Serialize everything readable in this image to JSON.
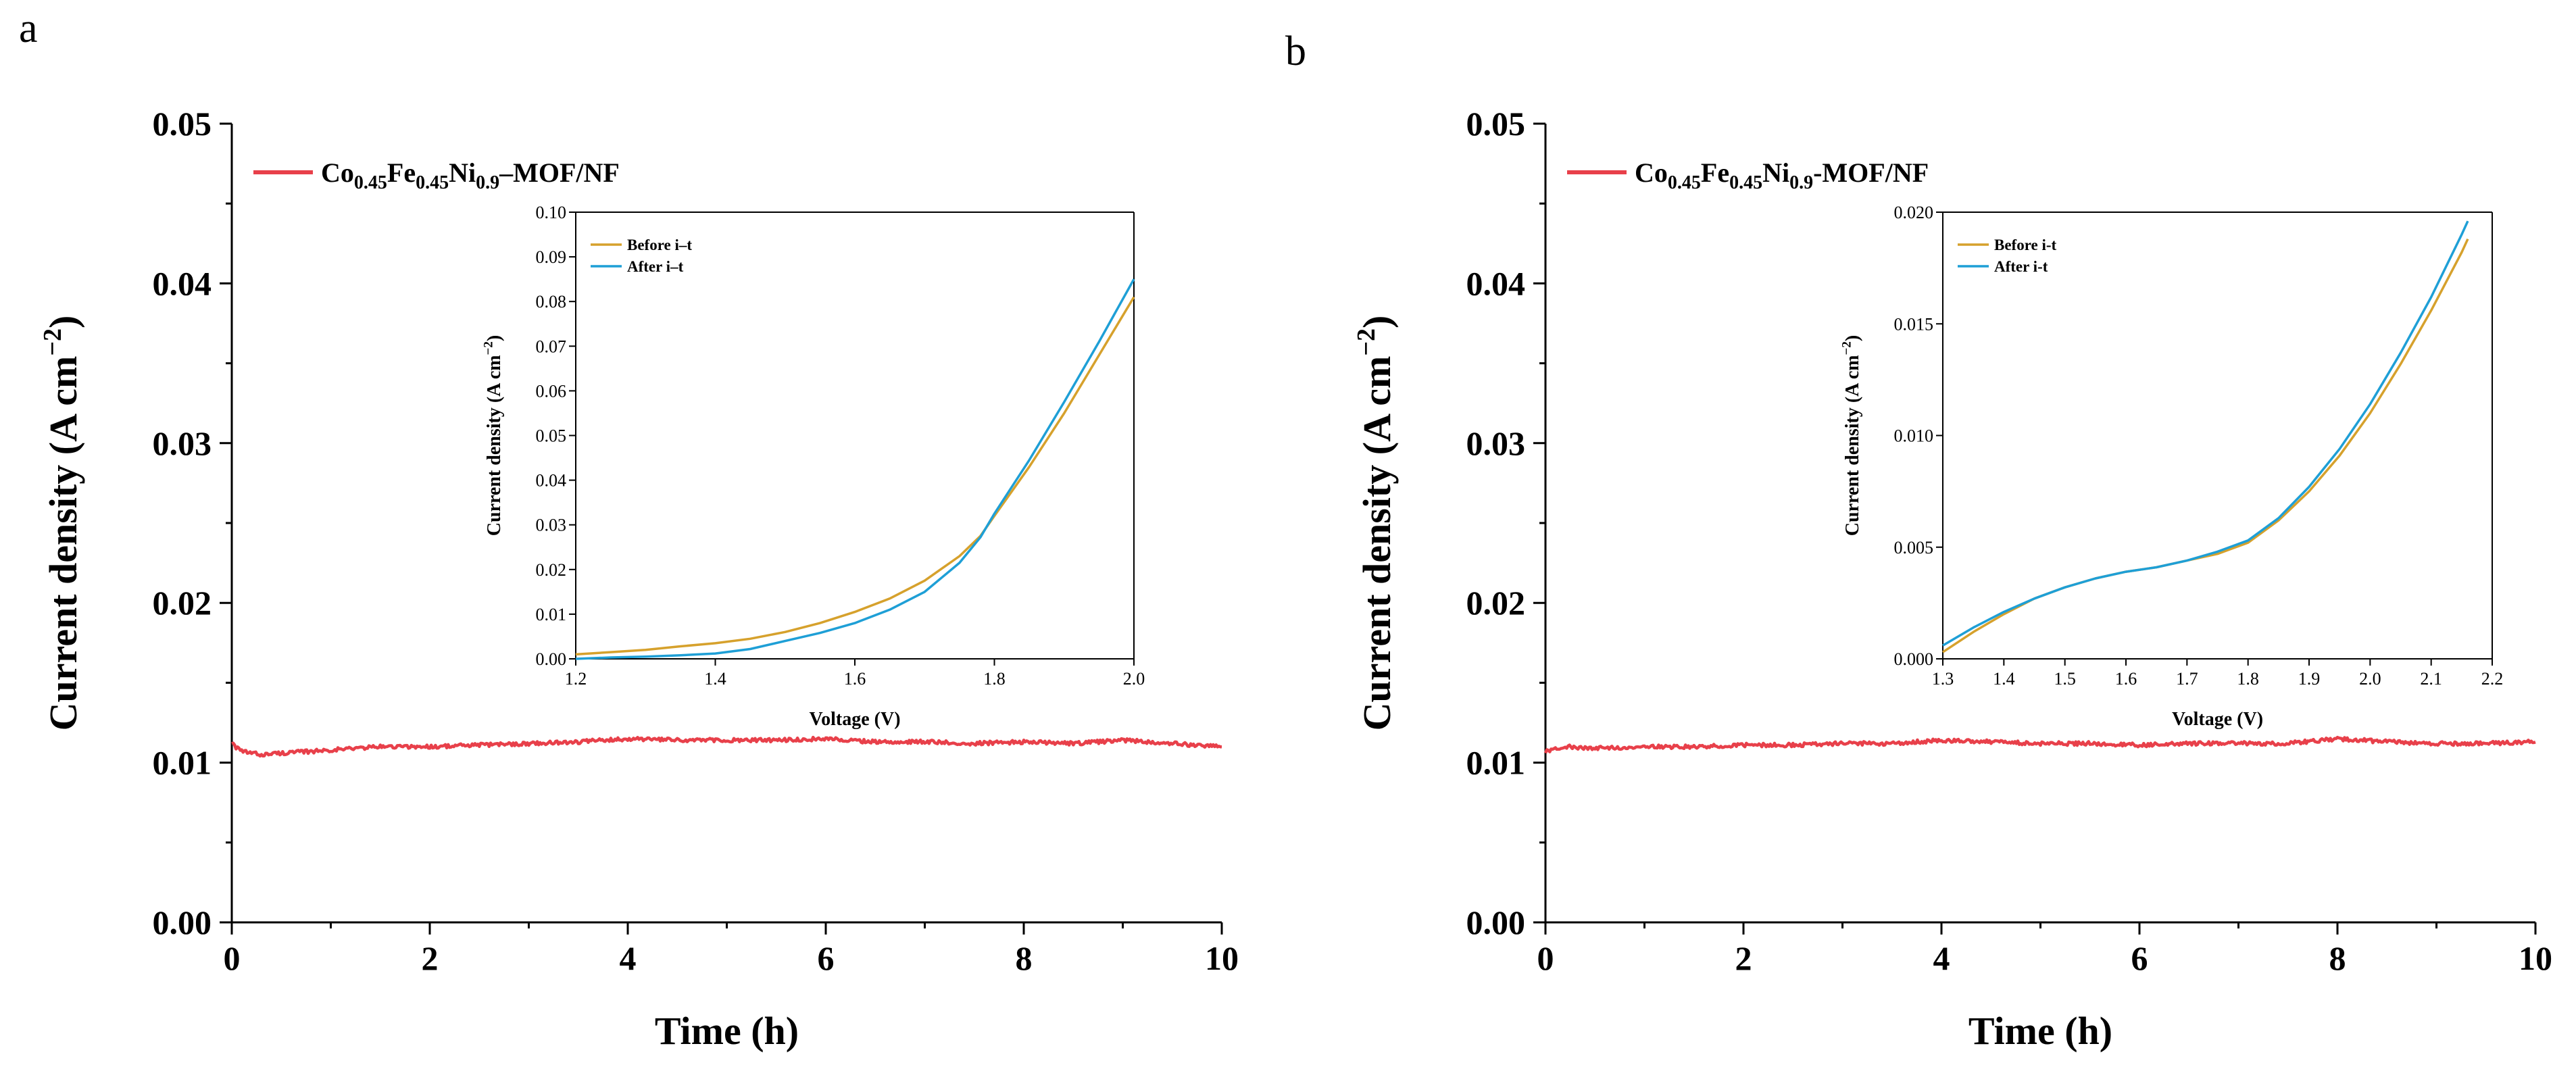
{
  "colors": {
    "stability": "#e8404a",
    "before": "#d6a12c",
    "after": "#1e9fd6",
    "axis": "#000000"
  },
  "chart_data": [
    {
      "panel": "a",
      "type": "line",
      "xlabel": "Time (h)",
      "ylabel": "Current density (A cm",
      "ylabel_sup": "−2",
      "ylabel_close": ")",
      "xlim": [
        0,
        10
      ],
      "ylim": [
        0,
        0.05
      ],
      "xticks": [
        "0",
        "2",
        "4",
        "6",
        "8",
        "10"
      ],
      "yticks": [
        "0.00",
        "0.01",
        "0.02",
        "0.03",
        "0.04",
        "0.05"
      ],
      "legend": {
        "parts": [
          {
            "t": "Co"
          },
          {
            "t": "0.45",
            "sub": true
          },
          {
            "t": "Fe"
          },
          {
            "t": "0.45",
            "sub": true
          },
          {
            "t": "Ni"
          },
          {
            "t": "0.9",
            "sub": true
          },
          {
            "t": "–MOF/NF"
          }
        ]
      },
      "series": [
        {
          "name": "Co0.45Fe0.45Ni0.9–MOF/NF",
          "x": [
            0,
            0.05,
            0.1,
            0.2,
            0.3,
            0.5,
            0.8,
            1.0,
            1.5,
            2.0,
            2.5,
            3.0,
            3.5,
            4.0,
            4.5,
            5.0,
            5.5,
            6.0,
            6.5,
            7.0,
            7.5,
            8.0,
            8.5,
            9.0,
            9.5,
            10.0
          ],
          "y": [
            0.0113,
            0.0109,
            0.0107,
            0.0106,
            0.0105,
            0.0106,
            0.0107,
            0.0108,
            0.011,
            0.011,
            0.0111,
            0.0112,
            0.0113,
            0.0115,
            0.0114,
            0.0114,
            0.0114,
            0.0115,
            0.0113,
            0.0113,
            0.0112,
            0.0113,
            0.0112,
            0.0114,
            0.0112,
            0.011
          ],
          "noise": 0.00012
        }
      ],
      "inset": {
        "xlabel": "Voltage (V)",
        "ylabel": "Current density (A cm",
        "ylabel_sup": "−2",
        "ylabel_close": ")",
        "xlim": [
          1.2,
          2.0
        ],
        "ylim": [
          0,
          0.1
        ],
        "xticks": [
          "1.2",
          "1.4",
          "1.6",
          "1.8",
          "2.0"
        ],
        "yticks": [
          "0.00",
          "0.01",
          "0.02",
          "0.03",
          "0.04",
          "0.05",
          "0.06",
          "0.07",
          "0.08",
          "0.09",
          "0.10"
        ],
        "series": [
          {
            "name": "Before i–t",
            "x": [
              1.2,
              1.25,
              1.3,
              1.35,
              1.4,
              1.45,
              1.5,
              1.55,
              1.6,
              1.65,
              1.7,
              1.75,
              1.78,
              1.8,
              1.85,
              1.9,
              1.95,
              2.0
            ],
            "y": [
              0.001,
              0.0015,
              0.002,
              0.0028,
              0.0035,
              0.0045,
              0.006,
              0.008,
              0.0105,
              0.0135,
              0.0175,
              0.023,
              0.0275,
              0.032,
              0.043,
              0.055,
              0.068,
              0.081
            ]
          },
          {
            "name": "After i–t",
            "x": [
              1.2,
              1.25,
              1.3,
              1.35,
              1.4,
              1.45,
              1.5,
              1.55,
              1.6,
              1.65,
              1.7,
              1.75,
              1.78,
              1.8,
              1.85,
              1.9,
              1.95,
              2.0
            ],
            "y": [
              0.0,
              0.0003,
              0.0005,
              0.0008,
              0.0012,
              0.0022,
              0.004,
              0.0058,
              0.008,
              0.011,
              0.015,
              0.0215,
              0.0272,
              0.0325,
              0.0445,
              0.0575,
              0.071,
              0.085
            ]
          }
        ]
      }
    },
    {
      "panel": "b",
      "type": "line",
      "xlabel": "Time (h)",
      "ylabel": "Current density (A cm",
      "ylabel_sup": "−2",
      "ylabel_close": ")",
      "xlim": [
        0,
        10
      ],
      "ylim": [
        0,
        0.05
      ],
      "xticks": [
        "0",
        "2",
        "4",
        "6",
        "8",
        "10"
      ],
      "yticks": [
        "0.00",
        "0.01",
        "0.02",
        "0.03",
        "0.04",
        "0.05"
      ],
      "legend": {
        "parts": [
          {
            "t": "Co"
          },
          {
            "t": "0.45",
            "sub": true
          },
          {
            "t": "Fe"
          },
          {
            "t": "0.45",
            "sub": true
          },
          {
            "t": "Ni"
          },
          {
            "t": "0.9",
            "sub": true
          },
          {
            "t": "-MOF/NF"
          }
        ]
      },
      "series": [
        {
          "name": "Co0.45Fe0.45Ni0.9-MOF/NF",
          "x": [
            0,
            0.2,
            0.5,
            1.0,
            1.5,
            2.0,
            2.5,
            3.0,
            3.5,
            4.0,
            4.5,
            5.0,
            5.5,
            6.0,
            6.5,
            7.0,
            7.5,
            8.0,
            8.5,
            9.0,
            9.5,
            10.0
          ],
          "y": [
            0.0107,
            0.011,
            0.0109,
            0.011,
            0.011,
            0.0111,
            0.0111,
            0.0112,
            0.0112,
            0.0114,
            0.0113,
            0.0112,
            0.0112,
            0.0111,
            0.0112,
            0.0112,
            0.0112,
            0.0115,
            0.0113,
            0.0112,
            0.0112,
            0.0113
          ],
          "noise": 0.00012
        }
      ],
      "inset": {
        "xlabel": "Voltage (V)",
        "ylabel": "Current density (A cm",
        "ylabel_sup": "−2",
        "ylabel_close": ")",
        "xlim": [
          1.3,
          2.2
        ],
        "ylim": [
          0,
          0.02
        ],
        "xticks": [
          "1.3",
          "1.4",
          "1.5",
          "1.6",
          "1.7",
          "1.8",
          "1.9",
          "2.0",
          "2.1",
          "2.2"
        ],
        "yticks": [
          "0.000",
          "0.005",
          "0.010",
          "0.015",
          "0.020"
        ],
        "series": [
          {
            "name": "Before i-t",
            "x": [
              1.3,
              1.35,
              1.4,
              1.45,
              1.5,
              1.55,
              1.6,
              1.65,
              1.7,
              1.75,
              1.8,
              1.85,
              1.9,
              1.95,
              2.0,
              2.05,
              2.1,
              2.15,
              2.16
            ],
            "y": [
              0.0003,
              0.0012,
              0.002,
              0.0027,
              0.0032,
              0.0036,
              0.0039,
              0.0041,
              0.0044,
              0.0047,
              0.0052,
              0.0062,
              0.0075,
              0.0091,
              0.011,
              0.0132,
              0.0156,
              0.0182,
              0.0188
            ]
          },
          {
            "name": "After i-t",
            "x": [
              1.3,
              1.35,
              1.4,
              1.45,
              1.5,
              1.55,
              1.6,
              1.65,
              1.7,
              1.75,
              1.8,
              1.85,
              1.9,
              1.95,
              2.0,
              2.05,
              2.1,
              2.15,
              2.16
            ],
            "y": [
              0.0006,
              0.0014,
              0.0021,
              0.0027,
              0.0032,
              0.0036,
              0.0039,
              0.0041,
              0.0044,
              0.0048,
              0.0053,
              0.0063,
              0.0077,
              0.0094,
              0.0114,
              0.0137,
              0.0162,
              0.019,
              0.0196
            ]
          }
        ]
      }
    }
  ]
}
